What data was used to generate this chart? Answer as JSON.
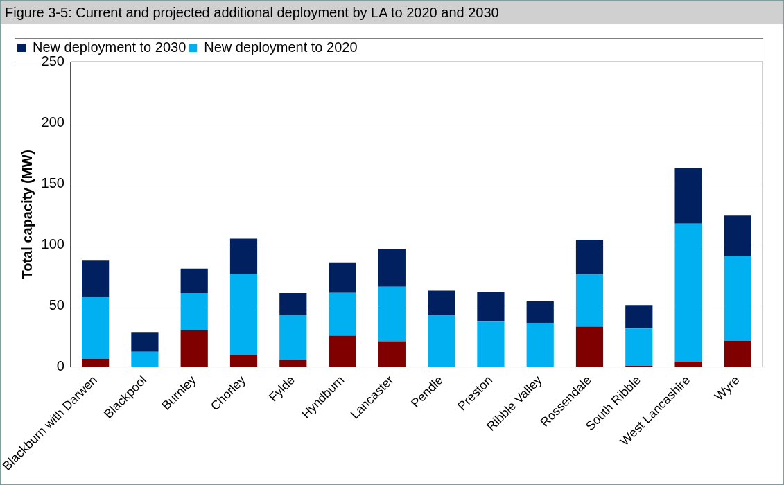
{
  "chart_data": {
    "type": "bar",
    "title": "Figure 3-5: Current and projected additional deployment by LA to 2020 and 2030",
    "ylabel": "Total capacity (MW)",
    "categories": [
      "Blackburn with Darwen",
      "Blackpool",
      "Burnley",
      "Chorley",
      "Fylde",
      "Hyndburn",
      "Lancaster",
      "Pendle",
      "Preston",
      "Ribble Valley",
      "Rossendale",
      "South Ribble",
      "West Lancashire",
      "Wyre"
    ],
    "stacked": true,
    "series": [
      {
        "color": "#800000",
        "values": [
          6.5,
          0,
          30,
          10,
          6,
          25.6,
          21,
          0,
          0,
          0,
          33,
          1,
          4.4,
          21.4
        ]
      },
      {
        "name": "New deployment to 2020",
        "color": "#00b0f0",
        "values": [
          51,
          12.4,
          30.5,
          66,
          36.5,
          35,
          44.7,
          42,
          37,
          36,
          42.5,
          30.4,
          113,
          69.2
        ]
      },
      {
        "name": "New deployment to 2030",
        "color": "#002060",
        "values": [
          30,
          16.1,
          20,
          29,
          18,
          25,
          31,
          20.5,
          24.4,
          17.7,
          28.7,
          19.3,
          45.5,
          33.3
        ]
      }
    ],
    "ylim": [
      0,
      250
    ],
    "yticks": [
      0,
      50,
      100,
      150,
      200,
      250
    ],
    "grid": "y",
    "legend": "top left"
  }
}
